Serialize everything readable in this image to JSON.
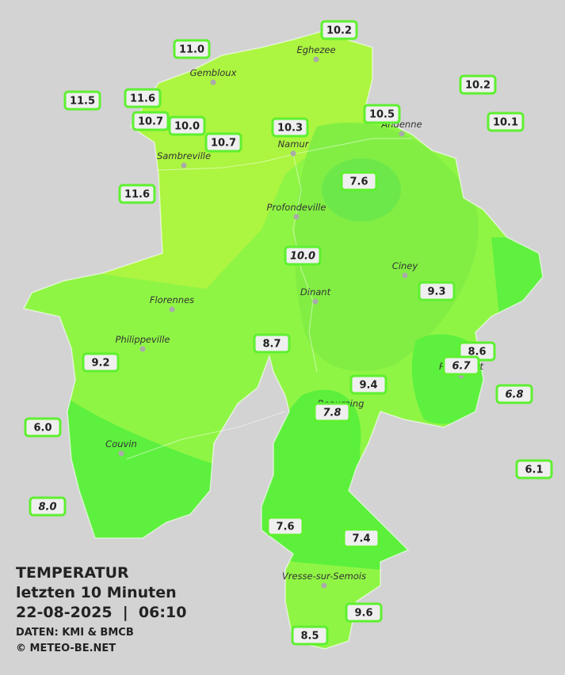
{
  "title": "TEMPERATUR",
  "subtitle": "letzten 10 Minuten",
  "datetime": "22-08-2025  |  06:10",
  "source": "DATEN: KMI & BMCB",
  "credit": "© METEO-BE.NET",
  "cities": [
    "Eghezee",
    "Gembloux",
    "Andenne",
    "Namur",
    "Sambreville",
    "Profondeville",
    "Ciney",
    "Dinant",
    "Florennes",
    "Philippeville",
    "Couvin",
    "Vresse-sur-Semois",
    "Rochefort",
    "Beauraing"
  ],
  "stations": [
    "10.2",
    "11.0",
    "10.2",
    "11.5",
    "11.6",
    "10.7",
    "10.0",
    "10.7",
    "10.3",
    "10.5",
    "10.1",
    "7.6",
    "11.6",
    "10.0",
    "9.3",
    "8.7",
    "8.6",
    "6.7",
    "9.2",
    "9.4",
    "6.8",
    "7.8",
    "6.0",
    "6.1",
    "8.0",
    "7.6",
    "7.4",
    "9.6",
    "8.5"
  ]
}
